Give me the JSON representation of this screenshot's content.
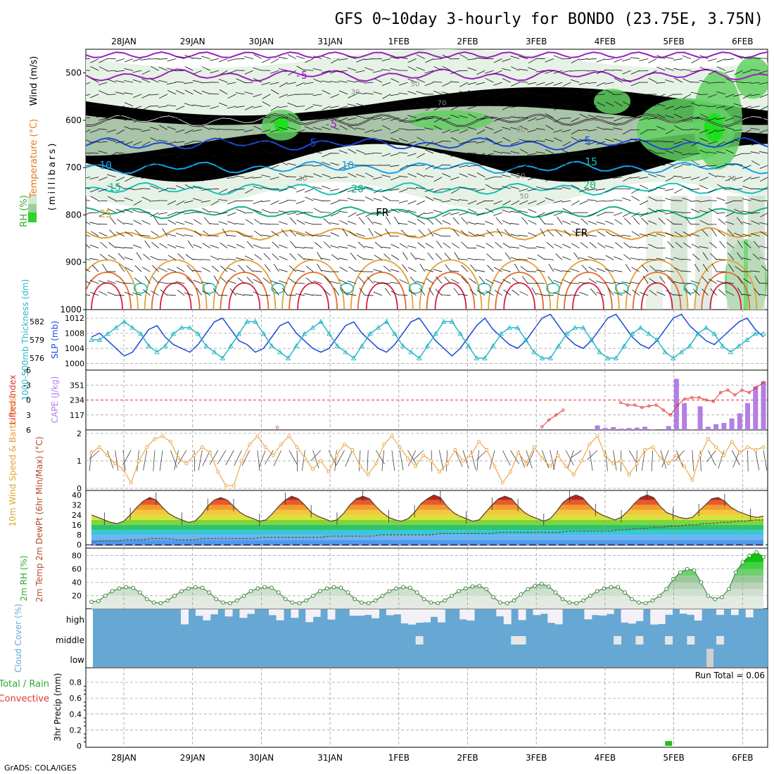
{
  "header": {
    "title": "GFS 0~10day 3-hourly for BONDO (23.75E, 3.75N)"
  },
  "footer": {
    "credit": "GrADS: COLA/IGES"
  },
  "colors": {
    "purple": "#9b1fc1",
    "blue_dark": "#1b49d6",
    "blue_mid": "#1aa0ea",
    "teal": "#17c2b8",
    "green_t": "#16b07e",
    "orange": "#e3a032",
    "orange_dark": "#e26a2c",
    "red": "#d81d40",
    "cyan": "#2ab7c8",
    "cape": "#b37ee6",
    "lifted": "#e23636",
    "cloud": "#66a8d3",
    "cloud_clear": "#f4f0f7",
    "precip": "#22c11c"
  },
  "x_axis": {
    "date_labels": [
      "28JAN",
      "29JAN",
      "30JAN",
      "31JAN",
      "1FEB",
      "2FEB",
      "3FEB",
      "4FEB",
      "5FEB",
      "6FEB"
    ],
    "date_index": [
      1,
      2,
      3,
      4,
      5,
      6,
      7,
      8,
      9,
      10
    ]
  },
  "chart_data": [
    {
      "id": "upper_air",
      "type": "heatmap",
      "ylabel_parts": [
        "RH (%)",
        "Temperature (°C)",
        "Wind (m/s)"
      ],
      "yaxis_title": "(millibars)",
      "y_ticks": [
        500,
        600,
        700,
        800,
        900,
        1000
      ],
      "ylim": [
        1000,
        450
      ],
      "contour_labels": {
        "temperature": [
          "-5",
          "5",
          "5",
          "10",
          "10",
          "15",
          "15",
          "20",
          "20",
          "25",
          "FR",
          "FR",
          "FR",
          "-5"
        ],
        "rh": [
          "30",
          "50",
          "30",
          "50",
          "30",
          "70",
          "50",
          "70"
        ]
      },
      "freezing_level_label": "FR",
      "temperature_levels_mb": {
        "-5": 505,
        "0": 600,
        "5": 650,
        "10": 700,
        "15": 745,
        "20": 795,
        "25": 840
      }
    },
    {
      "id": "slp_thickness",
      "type": "line",
      "ylabel_left": "1000-500mb Thickness (dm)",
      "ylabel_right": "SLP (mb)",
      "thickness_ticks": [
        576,
        579,
        582
      ],
      "slp_ticks": [
        1000,
        1004,
        1008,
        1012
      ],
      "series": [
        {
          "name": "SLP (mb)",
          "values": [
            1007,
            1008,
            1006,
            1004,
            1002,
            1003,
            1006,
            1009,
            1010,
            1007,
            1005,
            1004,
            1003,
            1005,
            1008,
            1011,
            1012,
            1009,
            1006,
            1005,
            1003,
            1004,
            1007,
            1010,
            1011,
            1008,
            1006,
            1004,
            1003,
            1004,
            1007,
            1010,
            1011,
            1008,
            1006,
            1004,
            1003,
            1005,
            1008,
            1011,
            1012,
            1009,
            1006,
            1004,
            1002,
            1004,
            1007,
            1010,
            1012,
            1009,
            1007,
            1005,
            1004,
            1006,
            1009,
            1012,
            1013,
            1010,
            1007,
            1005,
            1004,
            1006,
            1009,
            1012,
            1013,
            1010,
            1007,
            1005,
            1004,
            1006,
            1009,
            1012,
            1013,
            1010,
            1008,
            1006,
            1005,
            1007,
            1009,
            1011,
            1012,
            1009,
            1007
          ]
        },
        {
          "name": "1000-500mb Thickness (dm)",
          "values": [
            579,
            579,
            580,
            581,
            582,
            581,
            580,
            578,
            577,
            578,
            580,
            581,
            581,
            580,
            578,
            577,
            576,
            578,
            580,
            582,
            582,
            580,
            578,
            577,
            576,
            578,
            580,
            581,
            582,
            580,
            578,
            577,
            576,
            578,
            580,
            581,
            582,
            580,
            578,
            577,
            576,
            578,
            580,
            582,
            582,
            580,
            578,
            576,
            576,
            578,
            580,
            581,
            581,
            579,
            577,
            576,
            576,
            578,
            580,
            581,
            581,
            579,
            577,
            576,
            576,
            578,
            580,
            581,
            580,
            579,
            577,
            576,
            577,
            578,
            580,
            581,
            580,
            578,
            577,
            578,
            579,
            580,
            580
          ]
        }
      ]
    },
    {
      "id": "cape_li",
      "type": "bar",
      "ylabel_left": "Lifted Index",
      "ylabel_right": "CAPE (J/kg)",
      "li_ticks": [
        "-6",
        "-3",
        "0",
        "3",
        "6"
      ],
      "cape_ticks": [
        "117",
        "234",
        "351"
      ],
      "series": [
        {
          "name": "CAPE (J/kg)",
          "values": [
            0,
            0,
            0,
            0,
            0,
            0,
            0,
            0,
            0,
            0,
            0,
            0,
            0,
            0,
            0,
            0,
            0,
            0,
            0,
            0,
            0,
            0,
            0,
            0,
            0,
            0,
            0,
            0,
            0,
            0,
            0,
            0,
            0,
            0,
            0,
            0,
            0,
            0,
            0,
            0,
            0,
            0,
            0,
            0,
            0,
            0,
            0,
            0,
            0,
            0,
            0,
            0,
            0,
            0,
            0,
            0,
            0,
            0,
            0,
            0,
            0,
            0,
            0,
            0,
            35,
            15,
            22,
            10,
            15,
            18,
            25,
            5,
            0,
            30,
            400,
            210,
            5,
            185,
            25,
            45,
            55,
            90,
            130,
            210,
            340,
            380
          ]
        },
        {
          "name": "Lifted Index",
          "values": [
            6,
            6,
            6,
            6,
            6,
            6,
            6,
            6,
            6,
            6,
            6,
            6,
            6,
            6,
            6,
            6,
            6,
            6,
            6,
            6,
            6,
            6,
            6,
            6,
            6,
            6,
            5.5,
            6,
            6,
            6,
            6,
            6,
            6,
            6,
            6,
            6,
            6,
            6,
            6,
            6,
            6,
            6,
            6,
            6,
            6,
            6,
            6,
            6,
            6,
            6,
            6,
            6,
            6,
            6,
            6,
            6,
            6,
            6,
            6,
            6,
            6,
            6,
            6,
            5.4,
            4,
            3,
            2,
            6,
            6,
            6,
            6,
            6,
            6,
            6,
            0.5,
            1,
            1,
            1.5,
            1.2,
            1,
            2,
            3,
            1,
            -0.2,
            -0.5,
            -0.5,
            0,
            0.3,
            -1.5,
            -2,
            -1,
            -2,
            -1.5,
            -2.5,
            -3.5
          ]
        }
      ]
    },
    {
      "id": "wind10m",
      "type": "line",
      "ylabel": "10m Wind Speed & Barbs (m/s)",
      "y_ticks": [
        0,
        1,
        2
      ],
      "series": [
        {
          "name": "10m Wind Speed",
          "values": [
            1.3,
            1.5,
            1.2,
            0.9,
            0.7,
            0.2,
            1.0,
            1.5,
            1.8,
            1.9,
            1.7,
            1.1,
            0.9,
            1.2,
            1.5,
            1.3,
            0.6,
            0.1,
            0.1,
            1.0,
            1.6,
            1.9,
            1.5,
            1.2,
            1.6,
            1.9,
            1.5,
            1.1,
            0.7,
            1.0,
            0.6,
            1.2,
            1.6,
            1.4,
            0.8,
            0.5,
            0.9,
            1.6,
            1.9,
            1.5,
            1.1,
            0.8,
            1.2,
            1.0,
            0.6,
            0.9,
            1.4,
            1.0,
            1.2,
            1.7,
            1.4,
            0.8,
            0.2,
            0.6,
            1.3,
            0.9,
            1.5,
            1.1,
            0.8,
            1.2,
            0.8,
            0.5,
            1.0,
            1.6,
            1.9,
            1.2,
            0.9,
            1.0,
            0.5,
            0.9,
            1.4,
            1.5,
            1.1,
            0.9,
            1.2,
            0.8,
            0.3,
            1.2,
            1.8,
            1.5,
            1.2,
            1.7,
            1.3,
            1.5,
            1.4,
            1.5
          ]
        }
      ]
    },
    {
      "id": "temp2m",
      "type": "area",
      "ylabel": "2m Temp 2m DewPt (6hr Min/Max) (°C)",
      "y_ticks": [
        0,
        8,
        16,
        24,
        32,
        40
      ],
      "series": [
        {
          "name": "2m Temp",
          "values": [
            24,
            22,
            20,
            18,
            17,
            19,
            24,
            30,
            35,
            38,
            36,
            30,
            25,
            22,
            20,
            18,
            19,
            24,
            31,
            36,
            38,
            36,
            31,
            26,
            23,
            21,
            19,
            20,
            25,
            31,
            36,
            39,
            37,
            32,
            26,
            23,
            21,
            19,
            20,
            25,
            32,
            37,
            39,
            37,
            31,
            26,
            22,
            20,
            19,
            21,
            26,
            33,
            37,
            40,
            38,
            31,
            26,
            23,
            21,
            19,
            20,
            26,
            32,
            37,
            39,
            37,
            31,
            26,
            23,
            21,
            19,
            21,
            27,
            34,
            38,
            40,
            38,
            32,
            27,
            24,
            22,
            20,
            22,
            27,
            33,
            38,
            40,
            38,
            31,
            26,
            24,
            22,
            21,
            22,
            27,
            32,
            37,
            38,
            35,
            30,
            27,
            25,
            23,
            22,
            23
          ]
        },
        {
          "name": "2m DewPt",
          "values": [
            2,
            3,
            3,
            3,
            4,
            4,
            4,
            5,
            5,
            5,
            4,
            4,
            4,
            5,
            5,
            5,
            5,
            5,
            5,
            5,
            6,
            6,
            6,
            6,
            6,
            6,
            6,
            6,
            7,
            7,
            7,
            7,
            7,
            7,
            8,
            8,
            8,
            8,
            8,
            8,
            8,
            9,
            9,
            9,
            9,
            9,
            9,
            9,
            10,
            10,
            10,
            10,
            10,
            10,
            10,
            10,
            11,
            11,
            11,
            11,
            11,
            11,
            12,
            12,
            13,
            13,
            14,
            14,
            15,
            15,
            16,
            16,
            17,
            17,
            18,
            18,
            19,
            19,
            20,
            20
          ]
        }
      ]
    },
    {
      "id": "rh2m",
      "type": "area",
      "ylabel": "2m RH (%)",
      "y_ticks": [
        20,
        40,
        60,
        80
      ],
      "series": [
        {
          "name": "2m RH",
          "values": [
            11,
            12,
            20,
            27,
            31,
            33,
            32,
            25,
            15,
            10,
            9,
            13,
            20,
            27,
            31,
            33,
            32,
            25,
            15,
            10,
            9,
            13,
            20,
            27,
            31,
            33,
            32,
            25,
            15,
            10,
            9,
            13,
            20,
            27,
            31,
            33,
            32,
            25,
            15,
            10,
            9,
            13,
            20,
            27,
            31,
            33,
            32,
            25,
            15,
            10,
            9,
            13,
            20,
            27,
            31,
            34,
            35,
            30,
            18,
            10,
            9,
            13,
            22,
            30,
            35,
            38,
            34,
            25,
            15,
            10,
            9,
            13,
            20,
            27,
            31,
            33,
            33,
            25,
            15,
            10,
            9,
            13,
            20,
            30,
            45,
            55,
            60,
            58,
            40,
            20,
            15,
            18,
            30,
            55,
            70,
            80,
            85,
            78
          ]
        }
      ]
    },
    {
      "id": "cloud",
      "type": "bar",
      "ylabel": "Cloud Cover (%)",
      "layers": [
        "high",
        "middle",
        "low"
      ]
    },
    {
      "id": "precip",
      "type": "bar",
      "ylabel": "3hr Precip (mm)",
      "ylabel_left": "Total / Rain",
      "ylabel_left2": "Convective",
      "y_ticks": [
        "0",
        "0.2",
        "0.4",
        "0.6",
        "0.8"
      ],
      "run_total": "Run Total = 0.06",
      "series": [
        {
          "name": "Total / Rain",
          "values": [
            0.06
          ],
          "index": [
            73
          ]
        }
      ]
    }
  ]
}
